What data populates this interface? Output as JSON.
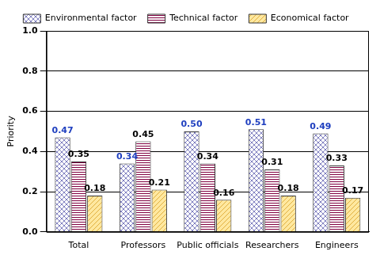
{
  "chart_data": {
    "type": "bar",
    "y_label": "Priority",
    "categories": [
      "Total",
      "Professors",
      "Public officials",
      "Researchers",
      "Engineers"
    ],
    "series": [
      {
        "name": "Environmental factor",
        "color": "#8080c0",
        "values": [
          0.47,
          0.34,
          0.5,
          0.51,
          0.49
        ],
        "value_labels": [
          "0.47",
          "0.34",
          "0.50",
          "0.51",
          "0.49"
        ]
      },
      {
        "name": "Technical factor",
        "color": "#800040",
        "values": [
          0.35,
          0.45,
          0.34,
          0.31,
          0.33
        ],
        "value_labels": [
          "0.35",
          "0.45",
          "0.34",
          "0.31",
          "0.33"
        ]
      },
      {
        "name": "Economical factor",
        "color": "#e0b040",
        "values": [
          0.18,
          0.21,
          0.16,
          0.18,
          0.17
        ],
        "value_labels": [
          "0.18",
          "0.21",
          "0.16",
          "0.18",
          "0.17"
        ]
      }
    ],
    "ylim": [
      0,
      1.0
    ],
    "yticks": [
      {
        "value": 0,
        "label": "0.0"
      },
      0.2,
      0.4,
      0.6,
      0.8,
      {
        "value": 1.0,
        "label": "1.0"
      }
    ],
    "grid": true,
    "legend": "top",
    "data_labels": true
  }
}
